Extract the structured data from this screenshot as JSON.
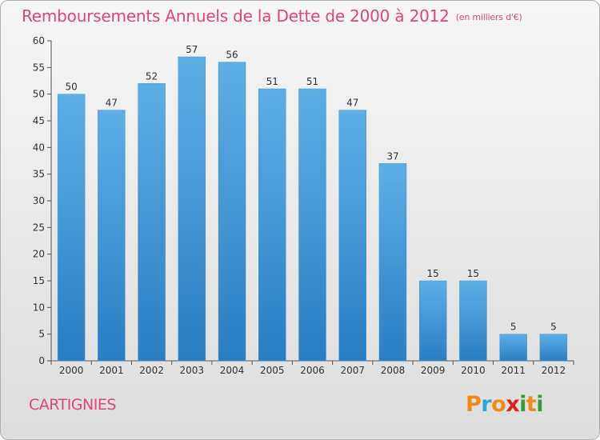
{
  "title": "Remboursements Annuels de la Dette de 2000 à 2012",
  "unit": "(en milliers d'€)",
  "commune": "CARTIGNIES",
  "logo": {
    "letters": [
      "P",
      "r",
      "o",
      "x",
      "i",
      "t",
      "i"
    ],
    "colors": [
      "#f08a1c",
      "#2fa4d8",
      "#f08a1c",
      "#e02020",
      "#3a9a3a",
      "#f08a1c",
      "#3a9a3a"
    ]
  },
  "colors": {
    "bar_light": "#5eaee6",
    "bar_dark": "#2a7ec2",
    "title": "#e0457b"
  },
  "chart_data": {
    "type": "bar",
    "categories": [
      "2000",
      "2001",
      "2002",
      "2003",
      "2004",
      "2005",
      "2006",
      "2007",
      "2008",
      "2009",
      "2010",
      "2011",
      "2012"
    ],
    "values": [
      50,
      47,
      52,
      57,
      56,
      51,
      51,
      47,
      37,
      15,
      15,
      5,
      5
    ],
    "ylim": [
      0,
      60
    ],
    "yticks": [
      0,
      5,
      10,
      15,
      20,
      25,
      30,
      35,
      40,
      45,
      50,
      55,
      60
    ],
    "grid": false
  }
}
